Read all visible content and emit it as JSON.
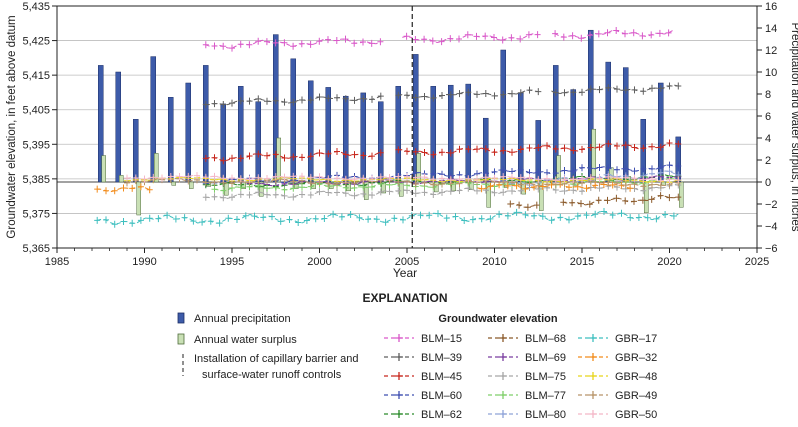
{
  "chart_data": {
    "type": "bar",
    "xlabel": "Year",
    "ylabel_left": "Groundwater elevation, in feet above datum",
    "ylabel_right": "Precipitation and water surplus, in inches",
    "xlim": [
      1985,
      2025
    ],
    "ylim_left": [
      5365,
      5435
    ],
    "ylim_right": [
      -6,
      16
    ],
    "x_ticks": [
      "1985",
      "1990",
      "1995",
      "2000",
      "2005",
      "2010",
      "2015",
      "2020",
      "2025"
    ],
    "y_left_ticks": [
      "5,365",
      "5,375",
      "5,385",
      "5,395",
      "5,405",
      "5,415",
      "5,425",
      "5,435"
    ],
    "y_right_ticks": [
      "−6",
      "−4",
      "−2",
      "0",
      "2",
      "4",
      "6",
      "8",
      "10",
      "12",
      "14",
      "16"
    ],
    "grid": true,
    "reference_lines": [
      {
        "name": "Installation of capillary barrier and surface-water runoff controls",
        "x": 2005.3,
        "style": "dashed"
      }
    ],
    "precipitation": {
      "name": "Annual precipitation",
      "color": "#3d5ba9",
      "years": [
        1987,
        1988,
        1989,
        1990,
        1991,
        1992,
        1993,
        1994,
        1995,
        1996,
        1997,
        1998,
        1999,
        2000,
        2001,
        2002,
        2003,
        2004,
        2005,
        2006,
        2007,
        2008,
        2009,
        2010,
        2011,
        2012,
        2013,
        2014,
        2015,
        2016,
        2017,
        2018,
        2019,
        2020
      ],
      "values": [
        10.6,
        10.0,
        5.7,
        11.4,
        7.7,
        9.0,
        10.6,
        7.1,
        8.7,
        7.3,
        13.4,
        11.2,
        9.2,
        8.6,
        7.8,
        8.1,
        7.3,
        8.7,
        11.6,
        8.7,
        8.8,
        8.9,
        5.8,
        12.0,
        8.1,
        5.6,
        10.6,
        8.4,
        13.8,
        10.9,
        10.4,
        5.7,
        9.0,
        4.1
      ]
    },
    "surplus": {
      "name": "Annual water surplus",
      "color": "#c9e0b5",
      "years": [
        1987,
        1988,
        1989,
        1990,
        1991,
        1992,
        1993,
        1994,
        1995,
        1996,
        1997,
        1998,
        1999,
        2000,
        2001,
        2002,
        2003,
        2004,
        2005,
        2006,
        2007,
        2008,
        2009,
        2010,
        2011,
        2012,
        2013,
        2014,
        2015,
        2016,
        2017,
        2018,
        2019,
        2020
      ],
      "values": [
        2.4,
        0.6,
        -3.0,
        2.6,
        -0.3,
        -0.6,
        -0.4,
        -1.2,
        -0.6,
        -1.3,
        4.0,
        -0.6,
        -0.6,
        -0.6,
        -0.8,
        -1.6,
        -1.0,
        -1.3,
        2.6,
        -0.9,
        -0.8,
        -0.7,
        -2.3,
        -0.5,
        -1.1,
        -2.6,
        2.4,
        -0.3,
        4.8,
        1.3,
        0.5,
        -2.8,
        -0.3,
        -2.3
      ]
    },
    "series": [
      {
        "name": "BLM–15",
        "color": "#d959c9",
        "start": 1993.5,
        "end": 2020.2,
        "base": 5423.6,
        "trend": 3.8,
        "amp": 1.1,
        "period": 4,
        "phase": 0.3,
        "gaps": [
          [
            2003.5,
            2004.5
          ],
          [
            2012.6,
            2013.3
          ]
        ]
      },
      {
        "name": "BLM–39",
        "color": "#5f5f5f",
        "start": 1993.5,
        "end": 2020.5,
        "base": 5406.9,
        "trend": 4.5,
        "amp": 0.8,
        "period": 4,
        "phase": 1.1,
        "gaps": [
          [
            2003.5,
            2004.5
          ],
          [
            2012.6,
            2013.2
          ]
        ]
      },
      {
        "name": "BLM–45",
        "color": "#c8281e",
        "start": 1993.5,
        "end": 2020.5,
        "base": 5391.0,
        "trend": 3.8,
        "amp": 1.0,
        "period": 4,
        "phase": 0.5,
        "gaps": [
          [
            2003.5,
            2004.5
          ]
        ]
      },
      {
        "name": "BLM–60",
        "color": "#3f4fb0",
        "start": 1993.5,
        "end": 2020.5,
        "base": 5384.0,
        "trend": 4.5,
        "amp": 0.9,
        "period": 5,
        "phase": 0.7,
        "gaps": []
      },
      {
        "name": "BLM–62",
        "color": "#2a8a2a",
        "start": 1993.5,
        "end": 2020.5,
        "base": 5383.0,
        "trend": 2.5,
        "amp": 0.8,
        "period": 5,
        "phase": 1.9,
        "gaps": []
      },
      {
        "name": "BLM–68",
        "color": "#8b5a2b",
        "start": 2010.9,
        "end": 2020.5,
        "base": 5377.2,
        "trend": 2.4,
        "amp": 0.9,
        "period": 3,
        "phase": 0.2,
        "gaps": [
          [
            2012.6,
            2013.8
          ]
        ]
      },
      {
        "name": "BLM–69",
        "color": "#7b3fa0",
        "start": 1995.5,
        "end": 2020.5,
        "base": 5383.5,
        "trend": 1.8,
        "amp": 0.7,
        "period": 4,
        "phase": 2.3,
        "gaps": []
      },
      {
        "name": "BLM–75",
        "color": "#a6a6a6",
        "start": 1993.5,
        "end": 2020.5,
        "base": 5380.0,
        "trend": 2.6,
        "amp": 0.9,
        "period": 4,
        "phase": 0.9,
        "gaps": []
      },
      {
        "name": "BLM–77",
        "color": "#7fcf6a",
        "start": 1994.0,
        "end": 2020.5,
        "base": 5382.2,
        "trend": 2.2,
        "amp": 0.8,
        "period": 4,
        "phase": 1.4,
        "gaps": []
      },
      {
        "name": "BLM–80",
        "color": "#8fa3d8",
        "start": 2010.5,
        "end": 2020.5,
        "base": 5383.5,
        "trend": 3.2,
        "amp": 1.0,
        "period": 3,
        "phase": 0.4,
        "gaps": []
      },
      {
        "name": "GBR–17",
        "color": "#3fbfbf",
        "start": 1987.3,
        "end": 2020.5,
        "base": 5373.0,
        "trend": 1.5,
        "amp": 1.4,
        "period": 5,
        "phase": 0.0,
        "gaps": []
      },
      {
        "name": "GBR–32",
        "color": "#f28c1c",
        "start": 1987.3,
        "end": 2018.0,
        "base": 5382.0,
        "trend": 1.0,
        "amp": 0.8,
        "period": 3,
        "phase": 0.6,
        "gaps": [
          [
            1990.5,
            2009.0
          ]
        ]
      },
      {
        "name": "GBR–48",
        "color": "#e8d51c",
        "start": 1989.0,
        "end": 2020.5,
        "base": 5385.0,
        "trend": -0.5,
        "amp": 0.6,
        "period": 6,
        "phase": 1.2,
        "gaps": []
      },
      {
        "name": "GBR–49",
        "color": "#b8956a",
        "start": 1989.0,
        "end": 2020.5,
        "base": 5384.5,
        "trend": -1.0,
        "amp": 0.8,
        "period": 6,
        "phase": 2.0,
        "gaps": []
      },
      {
        "name": "GBR–50",
        "color": "#f4b8c8",
        "start": 1989.0,
        "end": 2020.5,
        "base": 5385.5,
        "trend": -0.5,
        "amp": 0.6,
        "period": 6,
        "phase": 0.8,
        "gaps": []
      }
    ]
  },
  "legend": {
    "title": "EXPLANATION",
    "annual_precipitation": "Annual precipitation",
    "annual_water_surplus": "Annual water surplus",
    "installation_line1": "Installation of capillary barrier and",
    "installation_line2": "surface-water runoff controls",
    "groundwater_title": "Groundwater elevation"
  }
}
